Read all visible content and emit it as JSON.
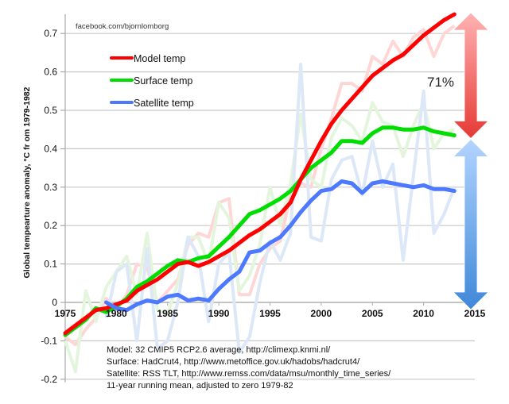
{
  "chart_data": {
    "type": "line",
    "title": "",
    "credit": "facebook.com/bjornlomborg",
    "xlabel": "",
    "ylabel": "Global tempearture anomaly, °C fr om 1979-1982",
    "xlim": [
      1975,
      2015
    ],
    "ylim": [
      -0.2,
      0.75
    ],
    "x_ticks": [
      "1975",
      "1980",
      "1985",
      "1990",
      "1995",
      "2000",
      "2005",
      "2010",
      "2015"
    ],
    "y_ticks": [
      "0.7",
      "0.6",
      "0.5",
      "0.4",
      "0.3",
      "0.2",
      "0.1",
      "0",
      "-0.1",
      "-0.2"
    ],
    "grid": true,
    "legend": {
      "placement": "top-left",
      "entries": [
        "Model temp",
        "Surface temp",
        "Satellite temp"
      ]
    },
    "annotation": {
      "text": "71%",
      "top_value": 0.75,
      "middle_value": 0.435,
      "bottom_value": 0.0
    },
    "notes": [
      "Model: 32 CMIP5 RCP2.6 average, http://climexp.knmi.nl/",
      "Surface: HadCrut4, http://www.metoffice.gov.uk/hadobs/hadcrut4/",
      "Satellite: RSS TLT, http://www.remss.com/data/msu/monthly_time_series/",
      "11-year running mean, adjusted to zero 1979-82"
    ],
    "series": [
      {
        "name": "Model temp",
        "color": "#ff0000",
        "start_year": 1975,
        "values": [
          -0.08,
          -0.06,
          -0.04,
          -0.02,
          -0.015,
          -0.005,
          0.005,
          0.03,
          0.045,
          0.06,
          0.08,
          0.1,
          0.105,
          0.095,
          0.105,
          0.12,
          0.135,
          0.155,
          0.175,
          0.19,
          0.21,
          0.23,
          0.26,
          0.32,
          0.37,
          0.42,
          0.465,
          0.5,
          0.53,
          0.56,
          0.59,
          0.61,
          0.63,
          0.645,
          0.67,
          0.695,
          0.715,
          0.735,
          0.75
        ]
      },
      {
        "name": "Surface temp",
        "color": "#00dd00",
        "start_year": 1975,
        "values": [
          -0.085,
          -0.065,
          -0.045,
          -0.015,
          -0.025,
          -0.01,
          0.01,
          0.04,
          0.055,
          0.075,
          0.095,
          0.11,
          0.105,
          0.115,
          0.12,
          0.145,
          0.17,
          0.2,
          0.23,
          0.24,
          0.255,
          0.27,
          0.29,
          0.32,
          0.35,
          0.37,
          0.39,
          0.42,
          0.42,
          0.415,
          0.44,
          0.455,
          0.455,
          0.45,
          0.45,
          0.455,
          0.445,
          0.44,
          0.435
        ]
      },
      {
        "name": "Satellite temp",
        "color": "#4d79ff",
        "start_year": 1979,
        "values": [
          0.0,
          -0.015,
          -0.02,
          -0.005,
          0.005,
          0.0,
          0.015,
          0.02,
          0.005,
          0.01,
          0.005,
          0.035,
          0.06,
          0.08,
          0.13,
          0.135,
          0.155,
          0.17,
          0.2,
          0.235,
          0.265,
          0.29,
          0.295,
          0.315,
          0.31,
          0.285,
          0.31,
          0.315,
          0.31,
          0.305,
          0.3,
          0.305,
          0.295,
          0.295,
          0.29
        ]
      }
    ],
    "annual_series": [
      {
        "name": "Model annual",
        "color": "#ffd6d6",
        "start_year": 1975,
        "values": [
          -0.09,
          -0.11,
          -0.07,
          -0.04,
          0.01,
          -0.02,
          0.02,
          0.1,
          0.09,
          0.0,
          0.03,
          0.06,
          0.15,
          0.18,
          0.17,
          0.26,
          0.27,
          0.02,
          0.02,
          0.1,
          0.14,
          0.16,
          0.28,
          0.31,
          0.3,
          0.4,
          0.48,
          0.57,
          0.57,
          0.55,
          0.64,
          0.62,
          0.68,
          0.64,
          0.69,
          0.71,
          0.64,
          0.7,
          0.72
        ]
      },
      {
        "name": "Surface annual",
        "color": "#e3f5dc",
        "start_year": 1975,
        "values": [
          -0.1,
          -0.18,
          0.03,
          -0.05,
          0.04,
          0.08,
          0.12,
          0.02,
          0.18,
          -0.02,
          -0.03,
          0.05,
          0.17,
          0.17,
          0.1,
          0.26,
          0.22,
          0.03,
          0.07,
          0.15,
          0.3,
          0.2,
          0.31,
          0.49,
          0.32,
          0.3,
          0.43,
          0.48,
          0.46,
          0.42,
          0.52,
          0.47,
          0.46,
          0.38,
          0.46,
          0.52,
          0.4,
          0.44,
          0.45
        ]
      },
      {
        "name": "Satellite annual",
        "color": "#dce8f7",
        "start_year": 1979,
        "values": [
          -0.04,
          0.08,
          0.1,
          -0.1,
          0.14,
          -0.12,
          -0.1,
          0.0,
          0.17,
          0.12,
          -0.05,
          0.1,
          0.13,
          -0.13,
          -0.09,
          0.05,
          0.16,
          0.11,
          0.18,
          0.62,
          0.17,
          0.16,
          0.32,
          0.37,
          0.38,
          0.28,
          0.42,
          0.3,
          0.36,
          0.11,
          0.33,
          0.55,
          0.18,
          0.23,
          0.3
        ]
      }
    ]
  }
}
